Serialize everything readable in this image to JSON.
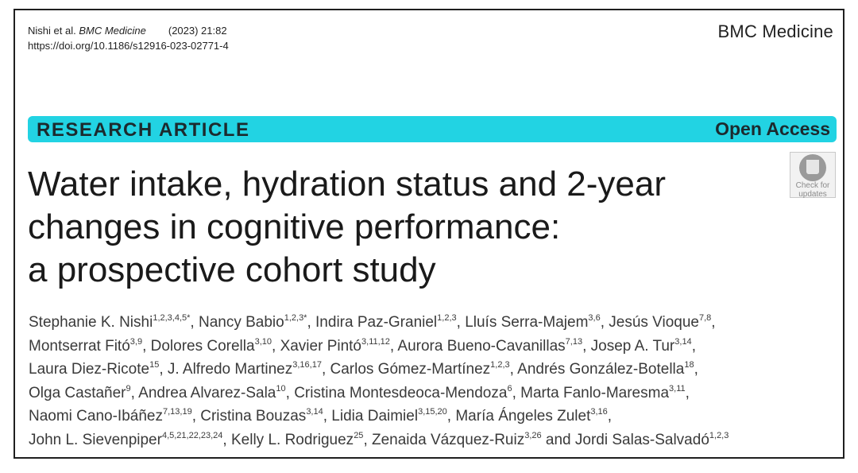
{
  "header": {
    "citation_authors": "Nishi et al.",
    "citation_journal": "BMC Medicine",
    "citation_volume": "(2023) 21:82",
    "doi": "https://doi.org/10.1186/s12916-023-02771-4",
    "journal_name": "BMC Medicine"
  },
  "banner": {
    "article_type": "RESEARCH ARTICLE",
    "access": "Open Access",
    "color": "#22d3e3"
  },
  "check_updates": {
    "label_line1": "Check for",
    "label_line2": "updates",
    "icon": "check-for-updates-icon"
  },
  "title": {
    "line1": "Water intake, hydration status and 2-year",
    "line2": "changes in cognitive performance:",
    "line3": "a prospective cohort study"
  },
  "authors": [
    {
      "name": "Stephanie K. Nishi",
      "aff": "1,2,3,4,5*"
    },
    {
      "name": "Nancy Babio",
      "aff": "1,2,3*"
    },
    {
      "name": "Indira Paz-Graniel",
      "aff": "1,2,3"
    },
    {
      "name": "Lluís Serra-Majem",
      "aff": "3,6"
    },
    {
      "name": "Jesús Vioque",
      "aff": "7,8"
    },
    {
      "name": "Montserrat Fitó",
      "aff": "3,9"
    },
    {
      "name": "Dolores Corella",
      "aff": "3,10"
    },
    {
      "name": "Xavier Pintó",
      "aff": "3,11,12"
    },
    {
      "name": "Aurora Bueno-Cavanillas",
      "aff": "7,13"
    },
    {
      "name": "Josep A. Tur",
      "aff": "3,14"
    },
    {
      "name": "Laura Diez-Ricote",
      "aff": "15"
    },
    {
      "name": "J. Alfredo Martinez",
      "aff": "3,16,17"
    },
    {
      "name": "Carlos Gómez-Martínez",
      "aff": "1,2,3"
    },
    {
      "name": "Andrés González-Botella",
      "aff": "18"
    },
    {
      "name": "Olga Castañer",
      "aff": "9"
    },
    {
      "name": "Andrea Alvarez-Sala",
      "aff": "10"
    },
    {
      "name": "Cristina Montesdeoca-Mendoza",
      "aff": "6"
    },
    {
      "name": "Marta Fanlo-Maresma",
      "aff": "3,11"
    },
    {
      "name": "Naomi Cano-Ibáñez",
      "aff": "7,13,19"
    },
    {
      "name": "Cristina Bouzas",
      "aff": "3,14"
    },
    {
      "name": "Lidia Daimiel",
      "aff": "3,15,20"
    },
    {
      "name": "María Ángeles Zulet",
      "aff": "3,16"
    },
    {
      "name": "John L. Sievenpiper",
      "aff": "4,5,21,22,23,24"
    },
    {
      "name": "Kelly L. Rodriguez",
      "aff": "25"
    },
    {
      "name": "Zenaida Vázquez-Ruiz",
      "aff": "3,26"
    },
    {
      "name": "Jordi Salas-Salvadó",
      "aff": "1,2,3"
    }
  ],
  "authors_conjunction": "and"
}
